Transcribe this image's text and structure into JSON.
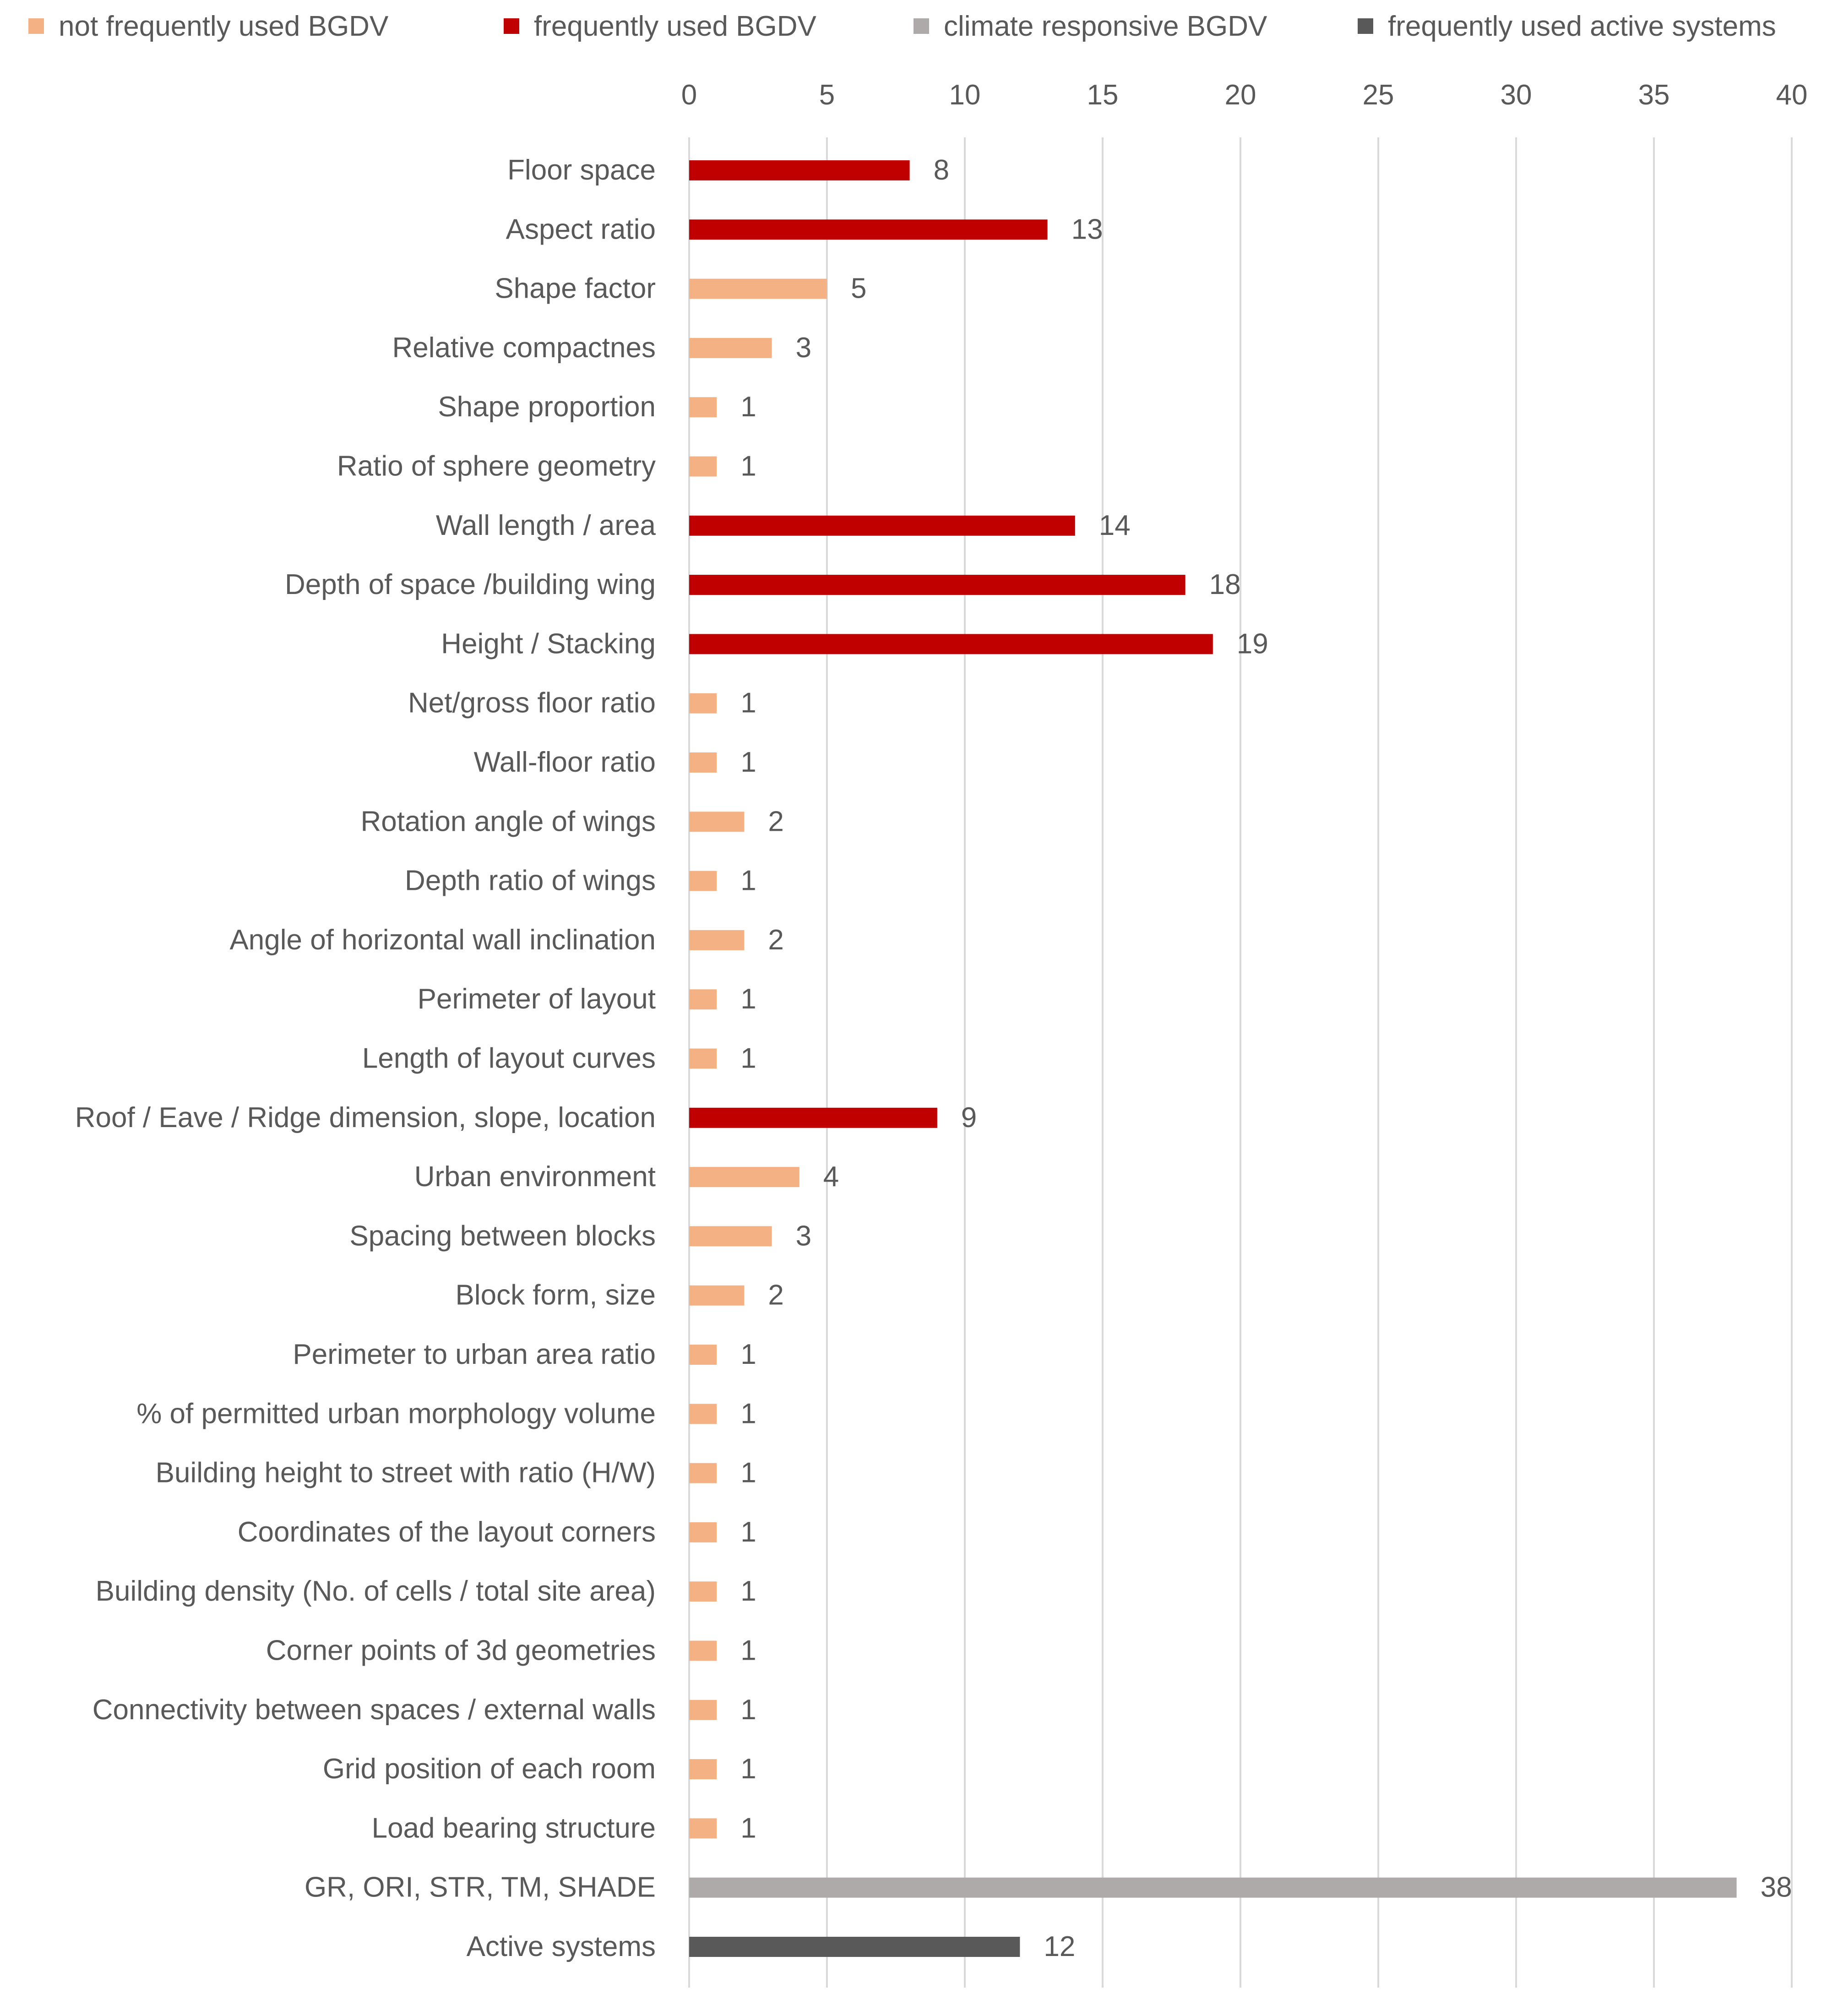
{
  "chart_data": {
    "type": "bar",
    "orientation": "horizontal",
    "title": "",
    "xlabel": "",
    "ylabel": "",
    "xlim": [
      0,
      40
    ],
    "ticks": [
      0,
      5,
      10,
      15,
      20,
      25,
      30,
      35,
      40
    ],
    "grid": true,
    "legend_position": "top",
    "legend": [
      {
        "name": "not frequently used BGDV",
        "color": "#f4b183"
      },
      {
        "name": "frequently used BGDV",
        "color": "#c00000"
      },
      {
        "name": "climate responsive BGDV",
        "color": "#aeaaaa"
      },
      {
        "name": "frequently used active systems",
        "color": "#595959"
      }
    ],
    "bars": [
      {
        "label": "Floor space",
        "value": 8,
        "series": 1
      },
      {
        "label": "Aspect ratio",
        "value": 13,
        "series": 1
      },
      {
        "label": "Shape factor",
        "value": 5,
        "series": 0
      },
      {
        "label": "Relative compactnes",
        "value": 3,
        "series": 0
      },
      {
        "label": "Shape proportion",
        "value": 1,
        "series": 0
      },
      {
        "label": "Ratio of sphere geometry",
        "value": 1,
        "series": 0
      },
      {
        "label": "Wall length / area",
        "value": 14,
        "series": 1
      },
      {
        "label": "Depth of space /building wing",
        "value": 18,
        "series": 1
      },
      {
        "label": "Height / Stacking",
        "value": 19,
        "series": 1
      },
      {
        "label": "Net/gross floor ratio",
        "value": 1,
        "series": 0
      },
      {
        "label": "Wall-floor ratio",
        "value": 1,
        "series": 0
      },
      {
        "label": "Rotation angle of wings",
        "value": 2,
        "series": 0
      },
      {
        "label": "Depth ratio of wings",
        "value": 1,
        "series": 0
      },
      {
        "label": "Angle of horizontal wall inclination",
        "value": 2,
        "series": 0
      },
      {
        "label": "Perimeter of layout",
        "value": 1,
        "series": 0
      },
      {
        "label": "Length of layout curves",
        "value": 1,
        "series": 0
      },
      {
        "label": "Roof / Eave / Ridge dimension, slope, location",
        "value": 9,
        "series": 1
      },
      {
        "label": "Urban environment",
        "value": 4,
        "series": 0
      },
      {
        "label": "Spacing between blocks",
        "value": 3,
        "series": 0
      },
      {
        "label": "Block form, size",
        "value": 2,
        "series": 0
      },
      {
        "label": "Perimeter to urban area ratio",
        "value": 1,
        "series": 0
      },
      {
        "label": "% of permitted urban morphology volume",
        "value": 1,
        "series": 0
      },
      {
        "label": "Building height to street with ratio (H/W)",
        "value": 1,
        "series": 0
      },
      {
        "label": "Coordinates of the layout corners",
        "value": 1,
        "series": 0
      },
      {
        "label": "Building density (No. of  cells / total site area)",
        "value": 1,
        "series": 0
      },
      {
        "label": "Corner points of 3d geometries",
        "value": 1,
        "series": 0
      },
      {
        "label": "Connectivity between spaces / external walls",
        "value": 1,
        "series": 0
      },
      {
        "label": "Grid position of each room",
        "value": 1,
        "series": 0
      },
      {
        "label": "Load bearing structure",
        "value": 1,
        "series": 0
      },
      {
        "label": "GR,  ORI, STR, TM, SHADE",
        "value": 38,
        "series": 2
      },
      {
        "label": "Active systems",
        "value": 12,
        "series": 3
      }
    ]
  }
}
